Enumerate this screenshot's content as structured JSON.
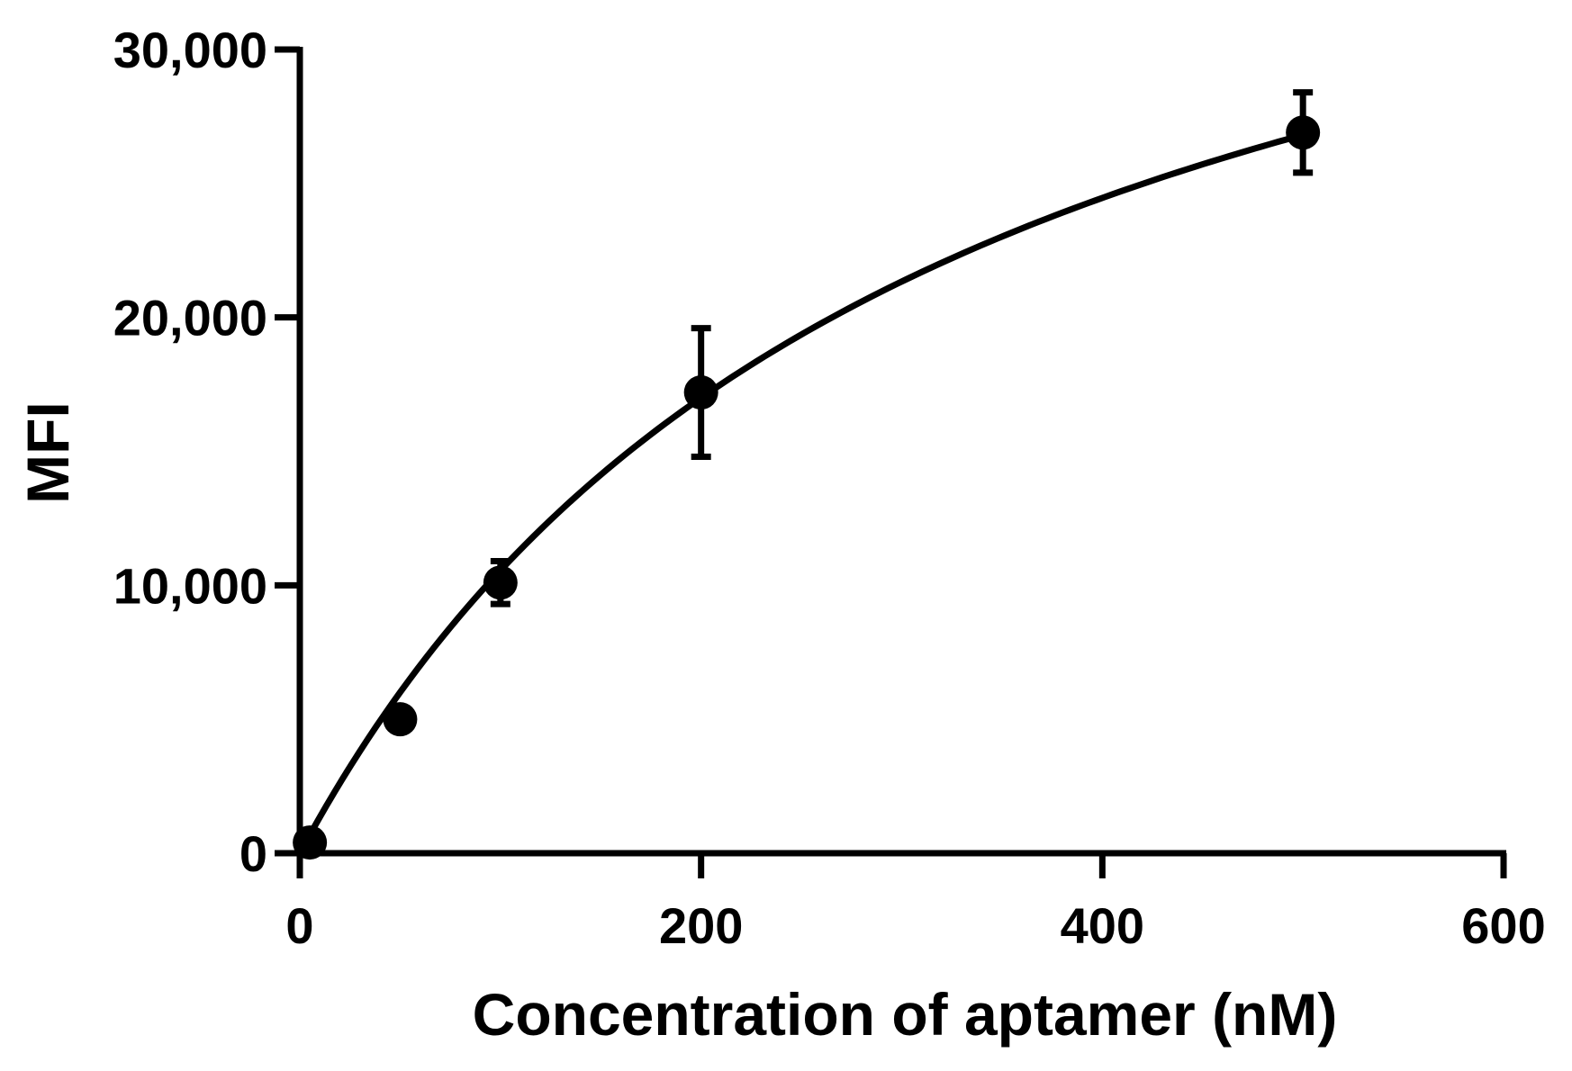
{
  "chart_data": {
    "type": "scatter",
    "xlabel": "Concentration of aptamer (nM)",
    "ylabel": "MFI",
    "xlim": [
      0,
      600
    ],
    "ylim": [
      0,
      30000
    ],
    "x_ticks": [
      0,
      200,
      400,
      600
    ],
    "x_tick_labels": [
      "0",
      "200",
      "400",
      "600"
    ],
    "y_ticks": [
      0,
      10000,
      20000,
      30000
    ],
    "y_tick_labels": [
      "0",
      "10,000",
      "20,000",
      "30,000"
    ],
    "grid": false,
    "legend": "none",
    "colors": {
      "marks": "#000000"
    },
    "series": [
      {
        "x": [
          5,
          50,
          100,
          200,
          500
        ],
        "y": [
          400,
          5000,
          10100,
          17200,
          26900
        ],
        "error": [
          200,
          300,
          800,
          2400,
          1500
        ]
      }
    ],
    "fit_curve": {
      "type": "one-site saturation binding",
      "bmax": 43600,
      "kd": 313
    }
  }
}
